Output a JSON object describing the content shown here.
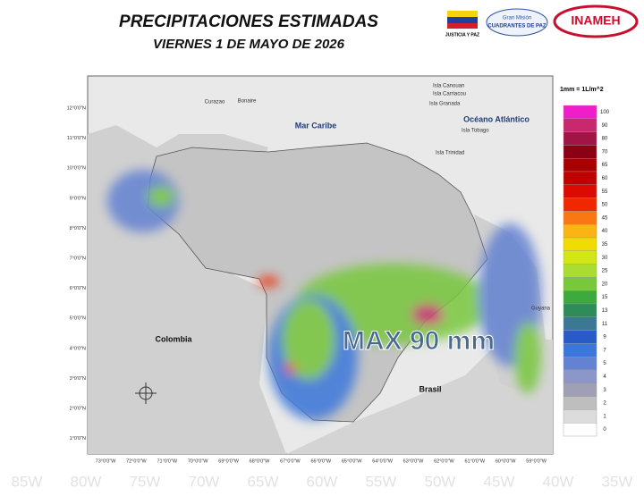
{
  "header": {
    "title": "PRECIPITACIONES ESTIMADAS",
    "subtitle": "VIERNES 1 DE MAYO DE 2026",
    "logos": [
      "JUSTICIA Y PAZ",
      "Gran Misión",
      "CUADRANTES DE PAZ",
      "INAMEH"
    ]
  },
  "map": {
    "unit": "1mm = 1L/m^2",
    "places": [
      "Curazao",
      "Bonaire",
      "Isla Canouan",
      "Isla Carriacou",
      "Isla Granada",
      "Mar Caribe",
      "Océano Atlántico",
      "Isla Tobago",
      "Isla Trinidad",
      "Colombia",
      "Brasil",
      "Guyana"
    ],
    "annotation": "MAX 90 mm",
    "lat_labels": [
      "12°0'0\"N",
      "11°0'0\"N",
      "10°0'0\"N",
      "9°0'0\"N",
      "8°0'0\"N",
      "7°0'0\"N",
      "6°0'0\"N",
      "5°0'0\"N",
      "4°0'0\"N",
      "3°0'0\"N",
      "2°0'0\"N",
      "1°0'0\"N"
    ],
    "lon_labels": [
      "73°0'0\"W",
      "72°0'0\"W",
      "71°0'0\"W",
      "70°0'0\"W",
      "69°0'0\"W",
      "68°0'0\"W",
      "67°0'0\"W",
      "66°0'0\"W",
      "65°0'0\"W",
      "64°0'0\"W",
      "63°0'0\"W",
      "62°0'0\"W",
      "61°0'0\"W",
      "60°0'0\"W",
      "59°0'0\"W"
    ],
    "background_lon": [
      "85W",
      "80W",
      "75W",
      "70W",
      "65W",
      "60W",
      "55W",
      "50W",
      "45W",
      "40W",
      "35W"
    ]
  },
  "legend": {
    "labels": [
      "100",
      "90",
      "80",
      "70",
      "65",
      "60",
      "55",
      "50",
      "45",
      "40",
      "35",
      "30",
      "25",
      "20",
      "15",
      "13",
      "11",
      "9",
      "7",
      "5",
      "4",
      "3",
      "2",
      "1",
      "0"
    ],
    "colors": [
      "#f01ec8",
      "#c8286e",
      "#a01446",
      "#8c0014",
      "#a80000",
      "#c00000",
      "#dc0a00",
      "#f02800",
      "#fa7814",
      "#fab414",
      "#f0dc00",
      "#d2e614",
      "#aadc32",
      "#78c83c",
      "#3caa3c",
      "#2d8c5a",
      "#3c7896",
      "#285ac8",
      "#3c78dc",
      "#6482d2",
      "#8c96c8",
      "#a0a0b4",
      "#bebebe",
      "#dcdcdc",
      "#ffffff"
    ]
  }
}
